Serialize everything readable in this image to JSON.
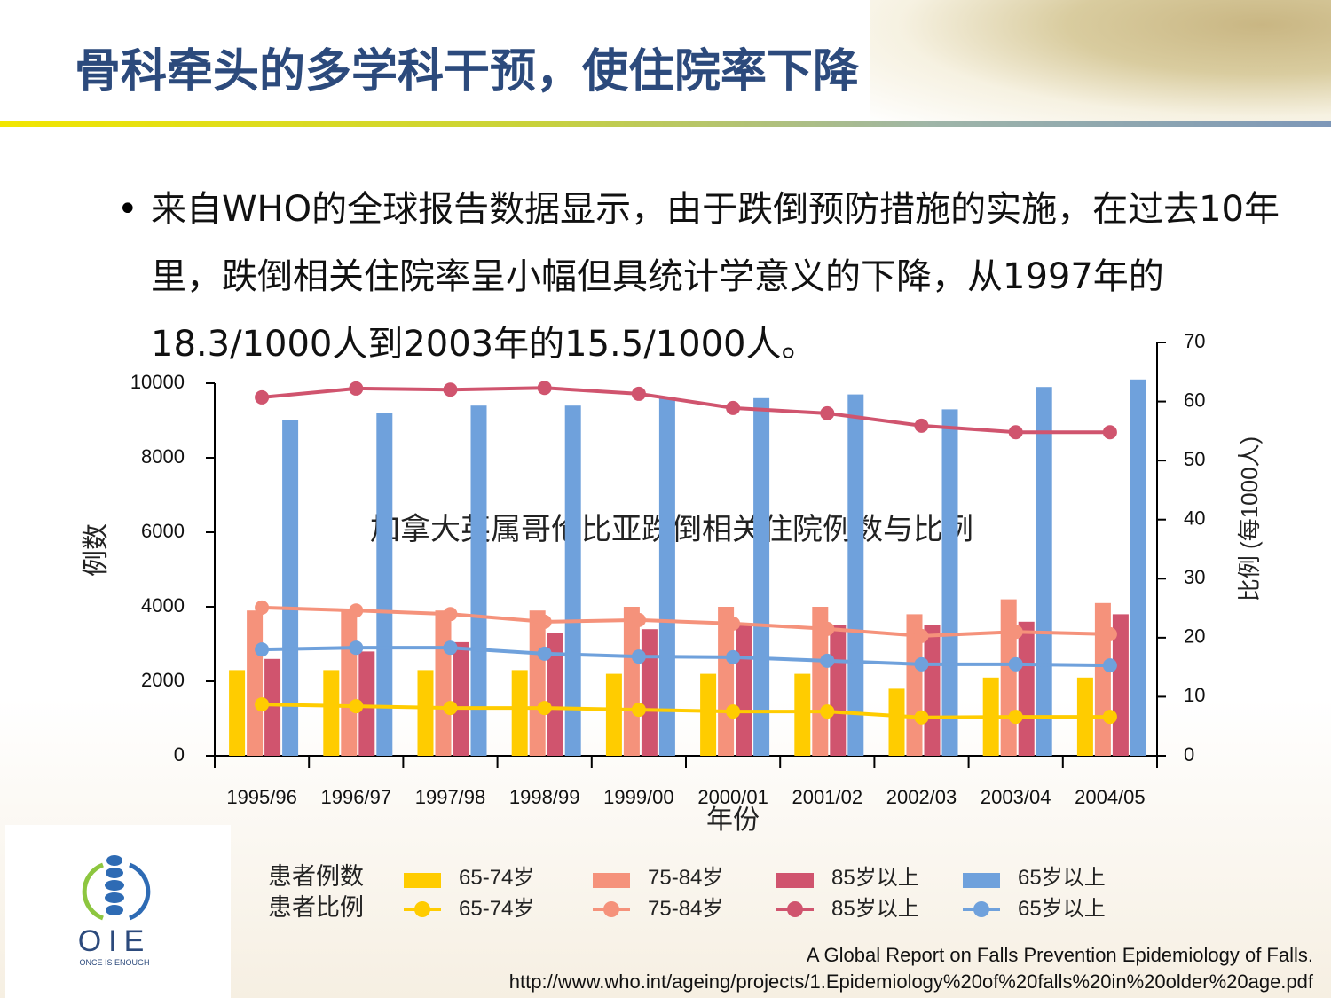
{
  "header": {
    "title": "骨科牵头的多学科干预，使住院率下降"
  },
  "bullet": "来自WHO的全球报告数据显示，由于跌倒预防措施的实施，在过去10年里，跌倒相关住院率呈小幅但具统计学意义的下降，从1997年的18.3/1000人到2003年的15.5/1000人。",
  "chart_data": {
    "type": "bar",
    "title": "加拿大英属哥伦比亚跌倒相关住院例数与比例",
    "xlabel": "年份",
    "ylabel": "例数",
    "y2label": "比例 (每1000人)",
    "categories": [
      "1995/96",
      "1996/97",
      "1997/98",
      "1998/99",
      "1999/00",
      "2000/01",
      "2001/02",
      "2002/03",
      "2003/04",
      "2004/05"
    ],
    "ylim": [
      0,
      10000
    ],
    "yticks": [
      0,
      2000,
      4000,
      6000,
      8000,
      10000
    ],
    "y2lim": [
      0,
      70
    ],
    "y2ticks": [
      0,
      10,
      20,
      30,
      40,
      50,
      60,
      70
    ],
    "legend_groups": [
      "患者例数",
      "患者比例"
    ],
    "series": [
      {
        "name": "65-74岁",
        "type": "bar",
        "color": "#ffcc00",
        "values": [
          2300,
          2300,
          2300,
          2300,
          2200,
          2200,
          2200,
          1800,
          2100,
          2100
        ]
      },
      {
        "name": "75-84岁",
        "type": "bar",
        "color": "#f5927b",
        "values": [
          3900,
          3900,
          3900,
          3900,
          4000,
          4000,
          4000,
          3800,
          4200,
          4100
        ]
      },
      {
        "name": "85岁以上",
        "type": "bar",
        "color": "#d0546e",
        "values": [
          2600,
          2800,
          3050,
          3300,
          3400,
          3500,
          3500,
          3500,
          3600,
          3800
        ]
      },
      {
        "name": "65岁以上",
        "type": "bar",
        "color": "#6fa1dc",
        "values": [
          9000,
          9200,
          9400,
          9400,
          9600,
          9600,
          9700,
          9300,
          9900,
          10100
        ]
      },
      {
        "name": "65-74岁",
        "type": "line",
        "axis": "y2",
        "color": "#ffcc00",
        "values": [
          8.7,
          8.4,
          8.1,
          8.1,
          7.8,
          7.5,
          7.5,
          6.5,
          6.6,
          6.6
        ]
      },
      {
        "name": "75-84岁",
        "type": "line",
        "axis": "y2",
        "color": "#f5927b",
        "values": [
          25.1,
          24.6,
          24.0,
          22.7,
          23.0,
          22.4,
          21.5,
          20.3,
          21.0,
          20.6
        ]
      },
      {
        "name": "85岁以上",
        "type": "line",
        "axis": "y2",
        "color": "#d0546e",
        "values": [
          60.7,
          62.2,
          62.0,
          62.3,
          61.3,
          58.9,
          58.0,
          55.9,
          54.8,
          54.8
        ]
      },
      {
        "name": "65岁以上",
        "type": "line",
        "axis": "y2",
        "color": "#6fa1dc",
        "values": [
          18.0,
          18.3,
          18.3,
          17.3,
          16.8,
          16.7,
          16.1,
          15.5,
          15.5,
          15.3
        ]
      }
    ]
  },
  "source": [
    "A Global Report on Falls Prevention Epidemiology of Falls.",
    "http://www.who.int/ageing/projects/1.Epidemiology%20of%20falls%20in%20older%20age.pdf"
  ],
  "logo": {
    "text": "OIE",
    "tagline": "ONCE IS ENOUGH"
  }
}
